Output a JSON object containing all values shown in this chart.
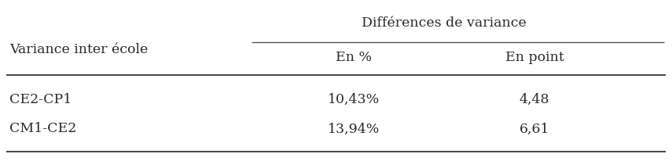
{
  "col0_header": "Variance inter école",
  "group_header": "Différences de variance",
  "col1_header": "En %",
  "col2_header": "En point",
  "rows": [
    [
      "CE2-CP1",
      "10,43%",
      "4,48"
    ],
    [
      "CM1-CE2",
      "13,94%",
      "6,61"
    ]
  ],
  "bg_color": "#ffffff",
  "text_color": "#2a2a2a",
  "line_color": "#444444",
  "font_size": 12.5,
  "header_font_size": 12.5
}
